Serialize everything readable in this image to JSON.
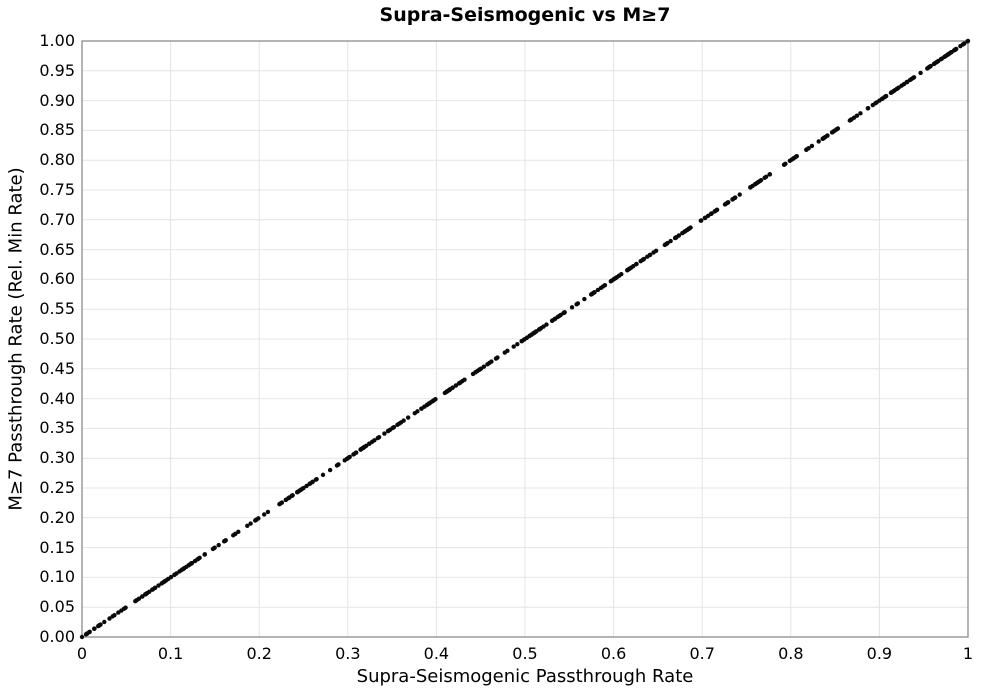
{
  "chart_data": {
    "type": "scatter",
    "title": "Supra-Seismogenic vs M≥7",
    "xlabel": "Supra-Seismogenic Passthrough Rate",
    "ylabel": "M≥7 Passthrough Rate (Rel. Min Rate)",
    "xlim": [
      0,
      1
    ],
    "ylim": [
      0,
      1
    ],
    "grid": true,
    "legend": false,
    "background_color": "#ffffff",
    "grid_color": "#e4e4e4",
    "spine_color": "#8c8c8c",
    "text_color": "#000000",
    "marker": {
      "shape": "circle",
      "color": "#0a0a0a",
      "radius": 2.2,
      "opacity": 1
    },
    "x_ticks": {
      "values": [
        0,
        0.1,
        0.2,
        0.3,
        0.4,
        0.5,
        0.6,
        0.7,
        0.8,
        0.9,
        1
      ],
      "labels": [
        "0",
        "0.1",
        "0.2",
        "0.3",
        "0.4",
        "0.5",
        "0.6",
        "0.7",
        "0.8",
        "0.9",
        "1"
      ]
    },
    "y_ticks": {
      "values": [
        0,
        0.05,
        0.1,
        0.15,
        0.2,
        0.25,
        0.3,
        0.35,
        0.4,
        0.45,
        0.5,
        0.55,
        0.6,
        0.65,
        0.7,
        0.75,
        0.8,
        0.85,
        0.9,
        0.95,
        1
      ],
      "labels": [
        "0.00",
        "0.05",
        "0.10",
        "0.15",
        "0.20",
        "0.25",
        "0.30",
        "0.35",
        "0.40",
        "0.45",
        "0.50",
        "0.55",
        "0.60",
        "0.65",
        "0.70",
        "0.75",
        "0.80",
        "0.85",
        "0.90",
        "0.95",
        "1.00"
      ]
    },
    "points": {
      "relation": "y = x",
      "description": "Dense cloud of small black markers lying exactly on the identity line y = x, spanning the full range 0 to 1 with occasional small gaps",
      "x_min": 0,
      "x_max": 1,
      "n": 430,
      "seed": 1234
    },
    "sample_points": [
      [
        0.0,
        0.0
      ],
      [
        0.05,
        0.05
      ],
      [
        0.1,
        0.1
      ],
      [
        0.15,
        0.15
      ],
      [
        0.2,
        0.2
      ],
      [
        0.25,
        0.25
      ],
      [
        0.3,
        0.3
      ],
      [
        0.35,
        0.35
      ],
      [
        0.4,
        0.4
      ],
      [
        0.45,
        0.45
      ],
      [
        0.5,
        0.5
      ],
      [
        0.55,
        0.55
      ],
      [
        0.6,
        0.6
      ],
      [
        0.65,
        0.65
      ],
      [
        0.7,
        0.7
      ],
      [
        0.75,
        0.75
      ],
      [
        0.8,
        0.8
      ],
      [
        0.85,
        0.85
      ],
      [
        0.9,
        0.9
      ],
      [
        0.95,
        0.95
      ],
      [
        1.0,
        1.0
      ]
    ]
  }
}
